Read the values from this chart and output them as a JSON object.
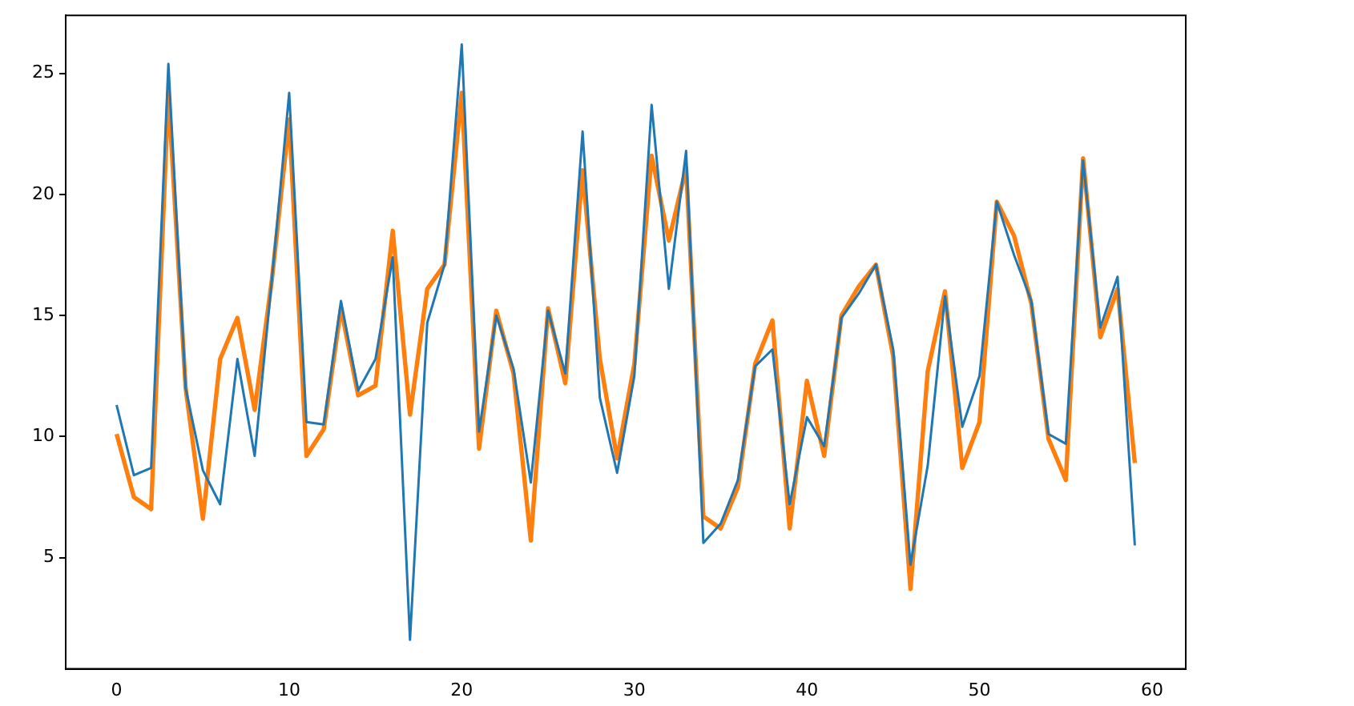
{
  "chart_data": {
    "type": "line",
    "x": [
      0,
      1,
      2,
      3,
      4,
      5,
      6,
      7,
      8,
      9,
      10,
      11,
      12,
      13,
      14,
      15,
      16,
      17,
      18,
      19,
      20,
      21,
      22,
      23,
      24,
      25,
      26,
      27,
      28,
      29,
      30,
      31,
      32,
      33,
      34,
      35,
      36,
      37,
      38,
      39,
      40,
      41,
      42,
      43,
      44,
      45,
      46,
      47,
      48,
      49,
      50,
      51,
      52,
      53,
      54,
      55,
      56,
      57,
      58,
      59
    ],
    "series": [
      {
        "color": "#1f77b4",
        "values": [
          11.3,
          8.4,
          8.7,
          25.4,
          12,
          8.6,
          7.2,
          13.2,
          9.2,
          16.5,
          24.2,
          10.6,
          10.5,
          15.6,
          11.9,
          13.2,
          17.4,
          1.6,
          14.7,
          17.1,
          26.2,
          10.2,
          15,
          12.8,
          8.1,
          15.2,
          12.6,
          22.6,
          11.6,
          8.5,
          12.5,
          23.7,
          16.1,
          21.8,
          5.6,
          6.4,
          8.2,
          12.9,
          13.6,
          7.2,
          10.8,
          9.6,
          14.9,
          15.9,
          17.1,
          13.6,
          4.7,
          8.8,
          15.8,
          10.4,
          12.5,
          19.7,
          17.5,
          15.6,
          10.1,
          9.7,
          21.4,
          14.5,
          16.6,
          5.5
        ]
      },
      {
        "color": "#ff7f0e",
        "values": [
          10.1,
          7.5,
          7,
          24.2,
          12,
          6.6,
          13.2,
          14.9,
          11.1,
          16.5,
          23.1,
          9.2,
          10.3,
          15.3,
          11.7,
          12.1,
          18.5,
          10.9,
          16.1,
          17.1,
          24.2,
          9.5,
          15.2,
          12.6,
          5.7,
          15.3,
          12.2,
          21,
          13.2,
          9.1,
          13,
          21.6,
          18.1,
          21.1,
          6.7,
          6.2,
          7.9,
          13,
          14.8,
          6.2,
          12.3,
          9.2,
          15,
          16.2,
          17.1,
          13.3,
          3.7,
          12.7,
          16,
          8.7,
          10.6,
          19.7,
          18.3,
          15.5,
          9.9,
          8.2,
          21.5,
          14.1,
          16.1,
          8.9
        ]
      }
    ],
    "xlim": [
      -2.95,
      61.95
    ],
    "ylim": [
      0.4,
      27.4
    ],
    "xticks": [
      0,
      10,
      20,
      30,
      40,
      50,
      60
    ],
    "yticks": [
      5,
      10,
      15,
      20,
      25
    ],
    "grid": false,
    "legend": false
  }
}
